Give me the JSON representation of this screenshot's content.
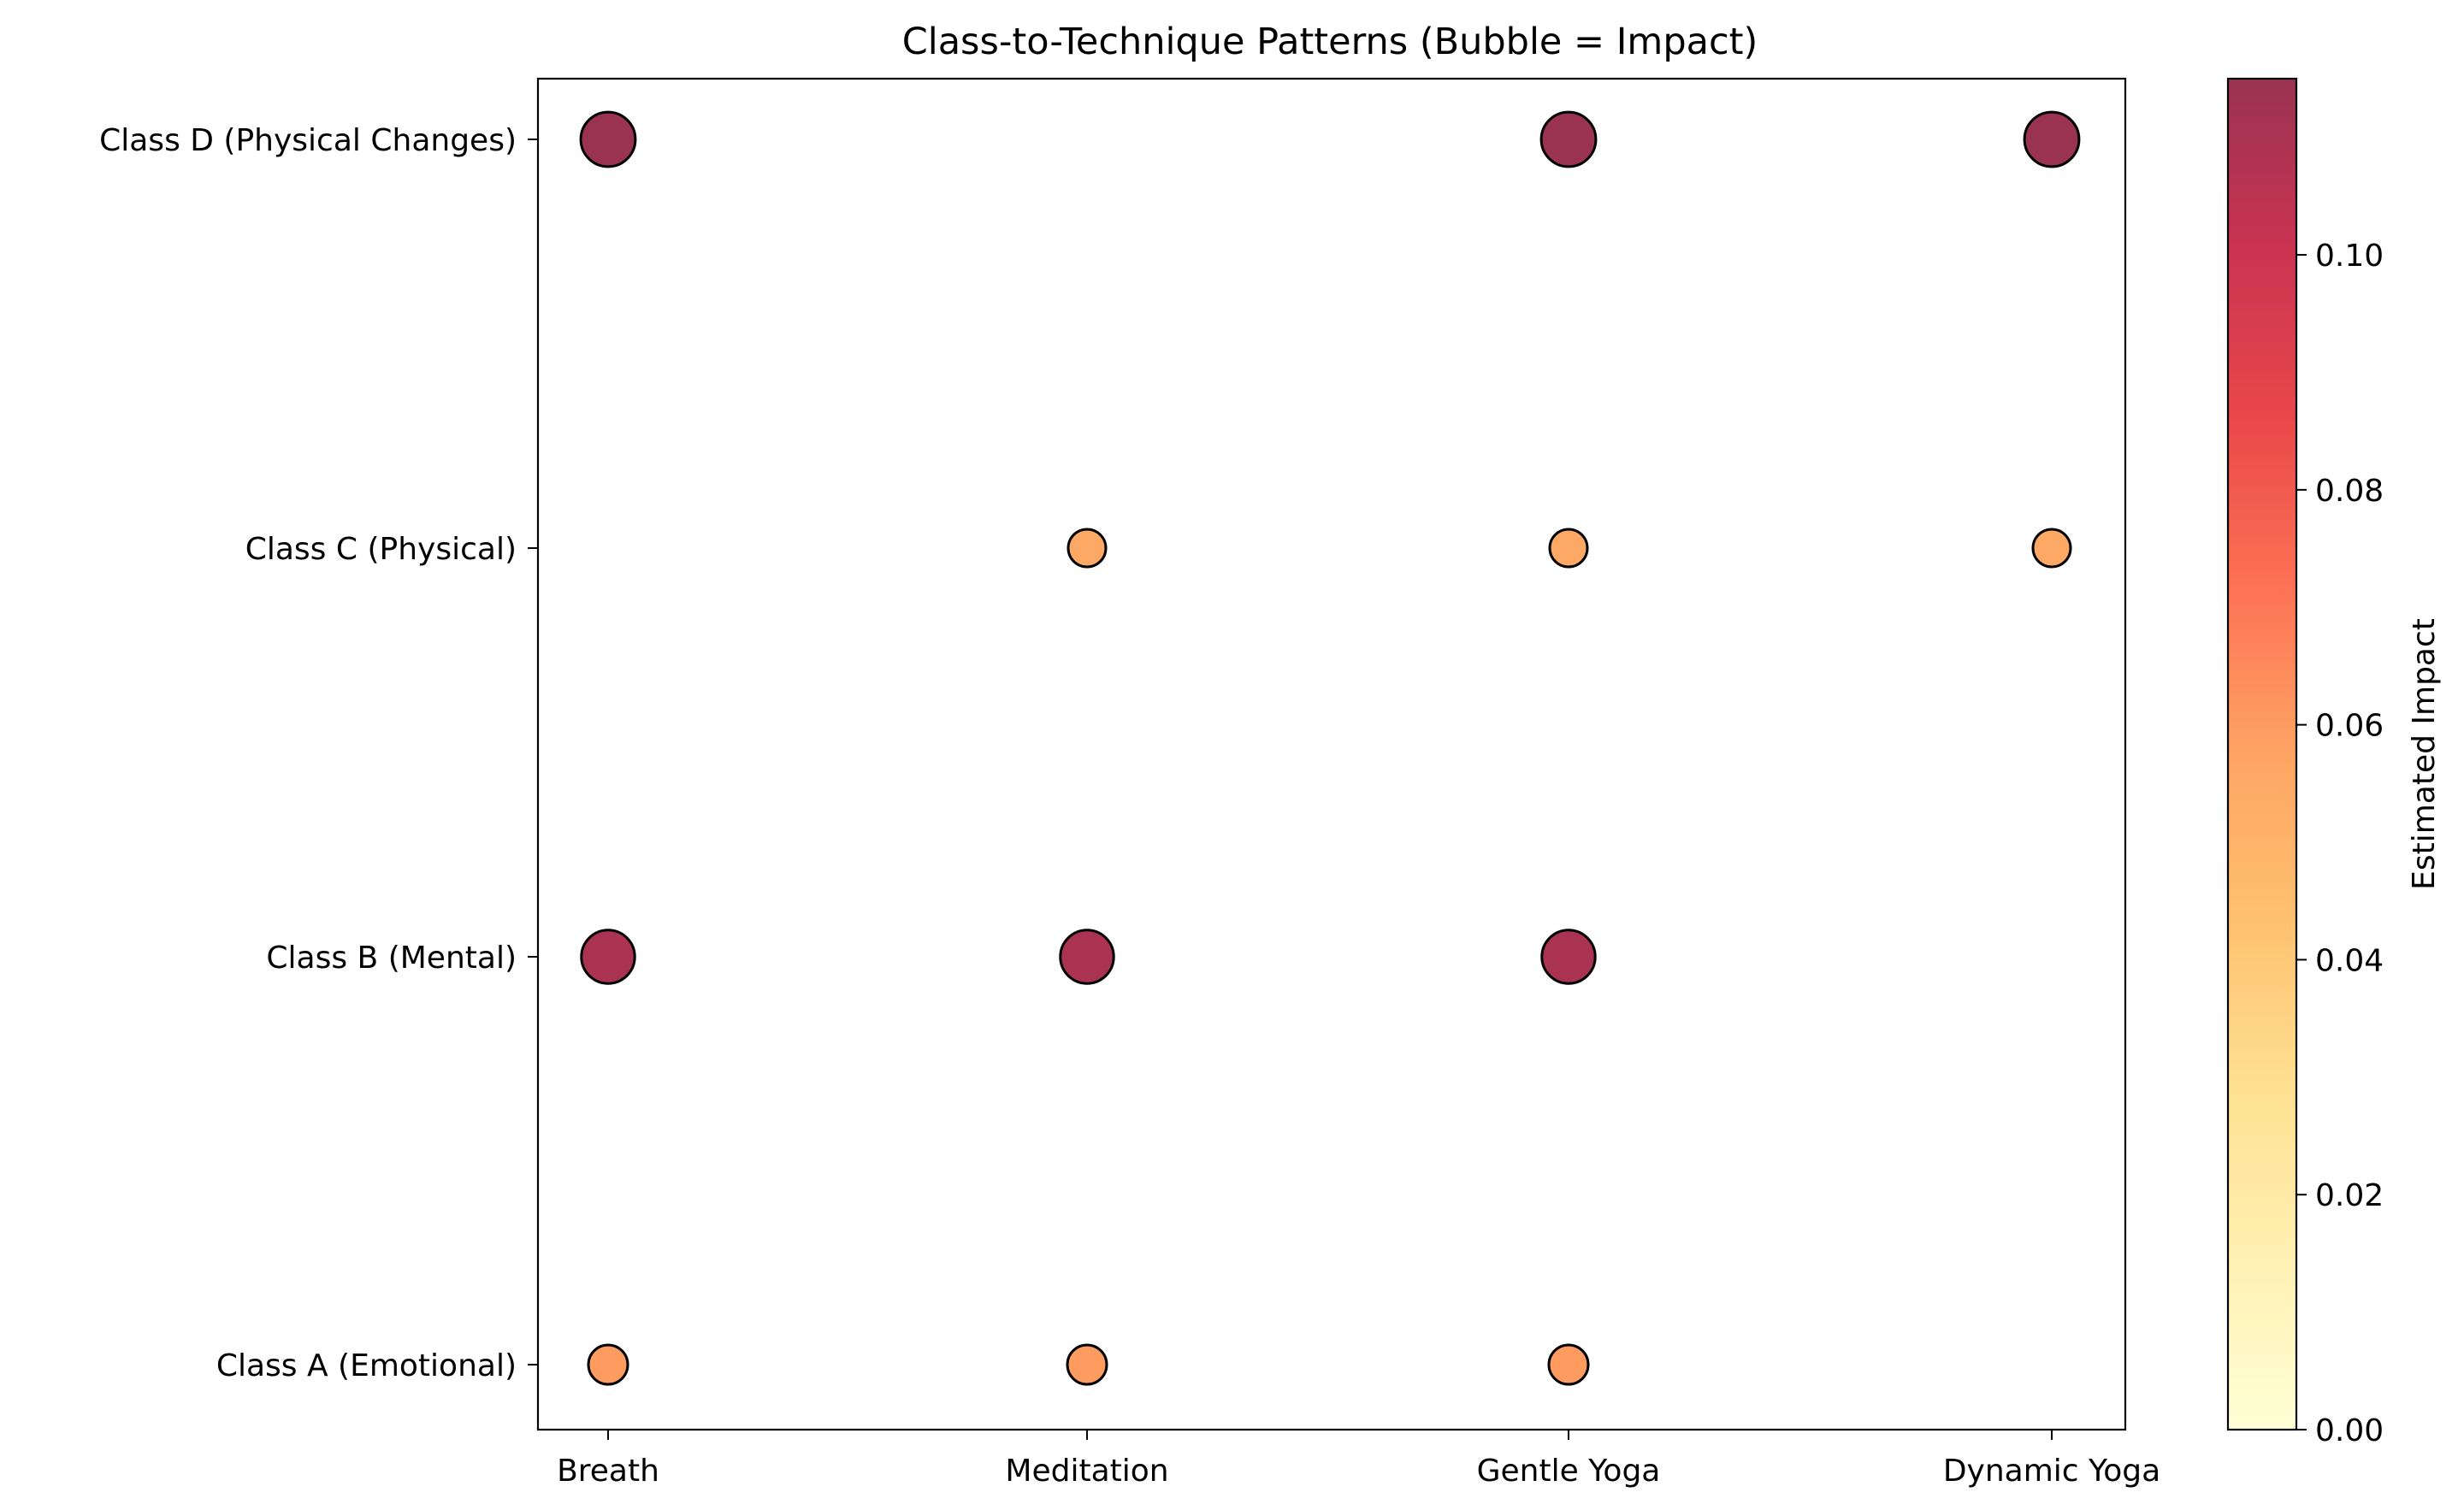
{
  "chart_data": {
    "type": "scatter",
    "title": "Class-to-Technique Patterns (Bubble = Impact)",
    "x_categories": [
      "Breath",
      "Meditation",
      "Gentle Yoga",
      "Dynamic Yoga"
    ],
    "y_categories": [
      "Class A (Emotional)",
      "Class B (Mental)",
      "Class C (Physical)",
      "Class D (Physical Changes)"
    ],
    "points": [
      {
        "x": "Breath",
        "y": "Class A (Emotional)",
        "impact": 0.06
      },
      {
        "x": "Meditation",
        "y": "Class A (Emotional)",
        "impact": 0.06
      },
      {
        "x": "Gentle Yoga",
        "y": "Class A (Emotional)",
        "impact": 0.06
      },
      {
        "x": "Breath",
        "y": "Class B (Mental)",
        "impact": 0.11
      },
      {
        "x": "Meditation",
        "y": "Class B (Mental)",
        "impact": 0.11
      },
      {
        "x": "Gentle Yoga",
        "y": "Class B (Mental)",
        "impact": 0.11
      },
      {
        "x": "Meditation",
        "y": "Class C (Physical)",
        "impact": 0.055
      },
      {
        "x": "Gentle Yoga",
        "y": "Class C (Physical)",
        "impact": 0.055
      },
      {
        "x": "Dynamic Yoga",
        "y": "Class C (Physical)",
        "impact": 0.055
      },
      {
        "x": "Breath",
        "y": "Class D (Physical Changes)",
        "impact": 0.115
      },
      {
        "x": "Gentle Yoga",
        "y": "Class D (Physical Changes)",
        "impact": 0.115
      },
      {
        "x": "Dynamic Yoga",
        "y": "Class D (Physical Changes)",
        "impact": 0.115
      }
    ],
    "colorbar": {
      "label": "Estimated Impact",
      "range": [
        0,
        0.115
      ],
      "ticks": [
        "0.00",
        "0.02",
        "0.04",
        "0.06",
        "0.08",
        "0.10"
      ],
      "colormap": "YlOrRd",
      "stops": [
        "#ffffcc",
        "#ffeda0",
        "#fed976",
        "#feb24c",
        "#fd8d3c",
        "#fc4e2a",
        "#e31a1c",
        "#bd0026",
        "#800026"
      ]
    },
    "marker_alpha": 0.8,
    "marker_edge_color": "#000000",
    "grid": false,
    "legend": "none"
  }
}
